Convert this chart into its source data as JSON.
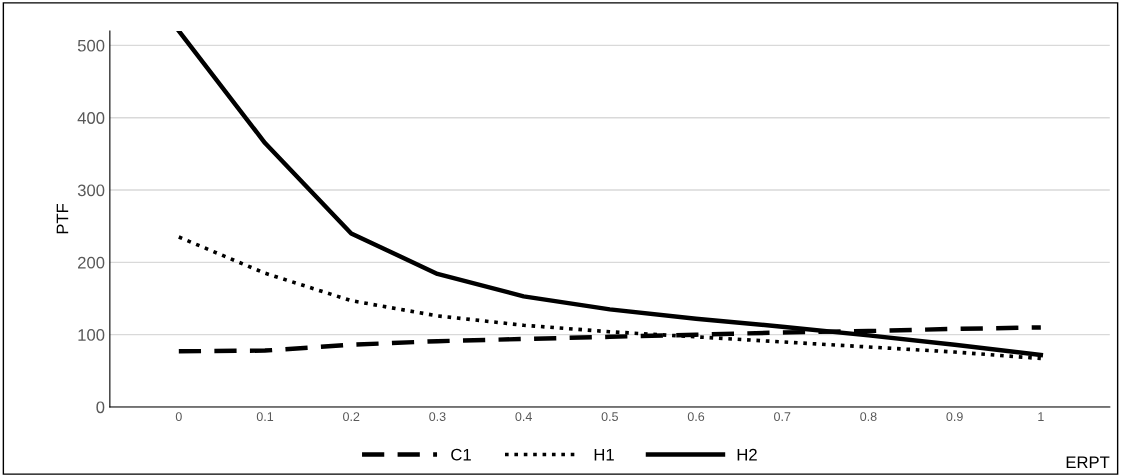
{
  "chart_data": {
    "type": "line",
    "xlabel": "ERPT",
    "ylabel": "PTF",
    "categories": [
      "0",
      "0.1",
      "0.2",
      "0.3",
      "0.4",
      "0.5",
      "0.6",
      "0.7",
      "0.8",
      "0.9",
      "1"
    ],
    "series": [
      {
        "name": "C1",
        "color": "#000000",
        "line_style": "dashed",
        "values": [
          77,
          78,
          86,
          91,
          94,
          97,
          100,
          103,
          105,
          108,
          110
        ]
      },
      {
        "name": "H1",
        "color": "#000000",
        "line_style": "dotted",
        "values": [
          235,
          185,
          147,
          126,
          113,
          104,
          97,
          90,
          83,
          76,
          67
        ]
      },
      {
        "name": "H2",
        "color": "#000000",
        "line_style": "solid",
        "values": [
          520,
          365,
          240,
          184,
          153,
          135,
          122,
          111,
          99,
          86,
          72
        ]
      }
    ],
    "ylim": [
      0,
      520
    ],
    "yticks": [
      0,
      100,
      200,
      300,
      400,
      500
    ],
    "grid": "y",
    "legend": "bottom",
    "marker": "none"
  }
}
